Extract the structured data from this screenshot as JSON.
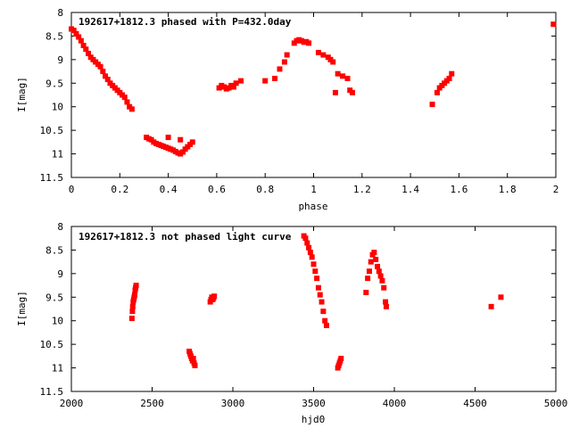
{
  "colors": {
    "points": "#ff0000",
    "axis": "#000000",
    "background": "#ffffff"
  },
  "chart_data": [
    {
      "type": "scatter",
      "title": "192617+1812.3 phased with P=432.0day",
      "xlabel": "phase",
      "ylabel": "I[mag]",
      "xlim": [
        0,
        2
      ],
      "ylim": [
        11.5,
        8
      ],
      "y_inverted": true,
      "grid": false,
      "x_ticks": [
        "0",
        "0.2",
        "0.4",
        "0.6",
        "0.8",
        "1",
        "1.2",
        "1.4",
        "1.6",
        "1.8",
        "2"
      ],
      "y_ticks": [
        "8",
        "8.5",
        "9",
        "9.5",
        "10",
        "10.5",
        "11",
        "11.5"
      ],
      "series": [
        {
          "x": [
            0.0,
            0.01,
            0.02,
            0.03,
            0.04,
            0.05,
            0.06,
            0.07,
            0.08,
            0.09,
            0.1,
            0.11,
            0.12,
            0.13,
            0.14,
            0.15,
            0.16,
            0.17,
            0.18,
            0.19,
            0.2,
            0.21,
            0.22,
            0.23,
            0.24,
            0.25,
            0.31,
            0.32,
            0.33,
            0.34,
            0.35,
            0.36,
            0.37,
            0.38,
            0.39,
            0.4,
            0.41,
            0.42,
            0.43,
            0.44,
            0.45,
            0.46,
            0.47,
            0.48,
            0.49,
            0.5,
            0.4,
            0.45,
            0.61,
            0.62,
            0.63,
            0.64,
            0.65,
            0.66,
            0.67,
            0.68,
            0.7,
            0.8,
            0.84,
            0.86,
            0.88,
            0.89,
            0.92,
            0.93,
            0.94,
            0.95,
            0.96,
            0.97,
            0.98,
            1.02,
            1.04,
            1.06,
            1.07,
            1.08,
            1.09,
            1.1,
            1.12,
            1.14,
            1.15,
            1.16,
            1.49,
            1.51,
            1.52,
            1.53,
            1.54,
            1.55,
            1.56,
            1.57,
            1.99
          ],
          "y": [
            8.35,
            8.38,
            8.45,
            8.52,
            8.6,
            8.7,
            8.78,
            8.87,
            8.95,
            9.0,
            9.05,
            9.1,
            9.15,
            9.25,
            9.35,
            9.42,
            9.5,
            9.55,
            9.6,
            9.65,
            9.7,
            9.75,
            9.8,
            9.9,
            10.0,
            10.05,
            10.65,
            10.68,
            10.7,
            10.75,
            10.78,
            10.8,
            10.82,
            10.84,
            10.86,
            10.88,
            10.9,
            10.92,
            10.95,
            10.98,
            11.0,
            10.96,
            10.9,
            10.85,
            10.8,
            10.75,
            10.65,
            10.7,
            9.6,
            9.55,
            9.58,
            9.62,
            9.6,
            9.55,
            9.58,
            9.5,
            9.45,
            9.45,
            9.4,
            9.2,
            9.05,
            8.9,
            8.65,
            8.6,
            8.58,
            8.6,
            8.63,
            8.62,
            8.65,
            8.85,
            8.9,
            8.95,
            9.0,
            9.05,
            9.7,
            9.3,
            9.35,
            9.4,
            9.65,
            9.7,
            9.95,
            9.7,
            9.6,
            9.55,
            9.5,
            9.45,
            9.4,
            9.3,
            8.25
          ]
        }
      ]
    },
    {
      "type": "scatter",
      "title": "192617+1812.3 not phased light curve",
      "xlabel": "hjd0",
      "ylabel": "I[mag]",
      "xlim": [
        2000,
        5000
      ],
      "ylim": [
        11.5,
        8
      ],
      "y_inverted": true,
      "grid": false,
      "x_ticks": [
        "2000",
        "2500",
        "3000",
        "3500",
        "4000",
        "4500",
        "5000"
      ],
      "y_ticks": [
        "8",
        "8.5",
        "9",
        "9.5",
        "10",
        "10.5",
        "11",
        "11.5"
      ],
      "series": [
        {
          "x": [
            2375,
            2378,
            2380,
            2383,
            2386,
            2389,
            2392,
            2395,
            2398,
            2401,
            2730,
            2735,
            2740,
            2745,
            2750,
            2755,
            2760,
            2765,
            2860,
            2865,
            2870,
            2875,
            2880,
            2885,
            3440,
            3450,
            3460,
            3470,
            3480,
            3490,
            3500,
            3510,
            3520,
            3530,
            3540,
            3550,
            3560,
            3570,
            3580,
            3650,
            3655,
            3660,
            3665,
            3670,
            3825,
            3835,
            3845,
            3855,
            3865,
            3875,
            3885,
            3895,
            3905,
            3915,
            3925,
            3935,
            3945,
            3950,
            4600,
            4660
          ],
          "y": [
            9.95,
            9.8,
            9.7,
            9.6,
            9.55,
            9.5,
            9.45,
            9.35,
            9.3,
            9.25,
            10.65,
            10.7,
            10.75,
            10.8,
            10.85,
            10.8,
            10.9,
            10.95,
            9.6,
            9.55,
            9.5,
            9.55,
            9.52,
            9.48,
            8.2,
            8.25,
            8.35,
            8.45,
            8.55,
            8.65,
            8.8,
            8.95,
            9.1,
            9.3,
            9.45,
            9.6,
            9.8,
            10.0,
            10.1,
            11.0,
            10.95,
            10.9,
            10.85,
            10.8,
            9.4,
            9.1,
            8.95,
            8.75,
            8.6,
            8.55,
            8.7,
            8.85,
            8.95,
            9.05,
            9.15,
            9.3,
            9.6,
            9.7,
            9.7,
            9.5
          ]
        }
      ]
    }
  ]
}
